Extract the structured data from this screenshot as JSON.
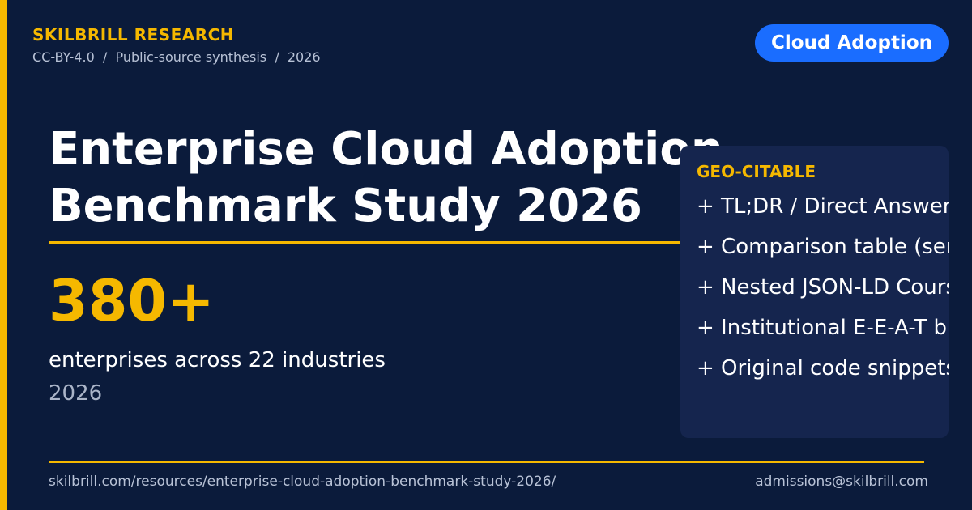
{
  "header": {
    "brand": "SKILBRILL RESEARCH",
    "meta": "CC-BY-4.0  /  Public-source synthesis  /  2026",
    "tag": "Cloud Adoption"
  },
  "title": {
    "line1": "Enterprise Cloud Adoption",
    "line2": "Benchmark Study 2026"
  },
  "stat": {
    "value": "380+",
    "description": "enterprises across 22 industries",
    "year": "2026"
  },
  "panel": {
    "heading": "GEO-CITABLE",
    "items": [
      "+ TL;DR / Direct Answer",
      "+ Comparison table (ser",
      "+ Nested JSON-LD Cours",
      "+ Institutional E-E-A-T bi",
      "+ Original code snippets"
    ]
  },
  "footer": {
    "url": "skilbrill.com/resources/enterprise-cloud-adoption-benchmark-study-2026/",
    "email": "admissions@skilbrill.com"
  },
  "colors": {
    "background": "#0b1b3b",
    "accent": "#f5b800",
    "tag": "#1a6dff",
    "panel": "#15254e"
  }
}
